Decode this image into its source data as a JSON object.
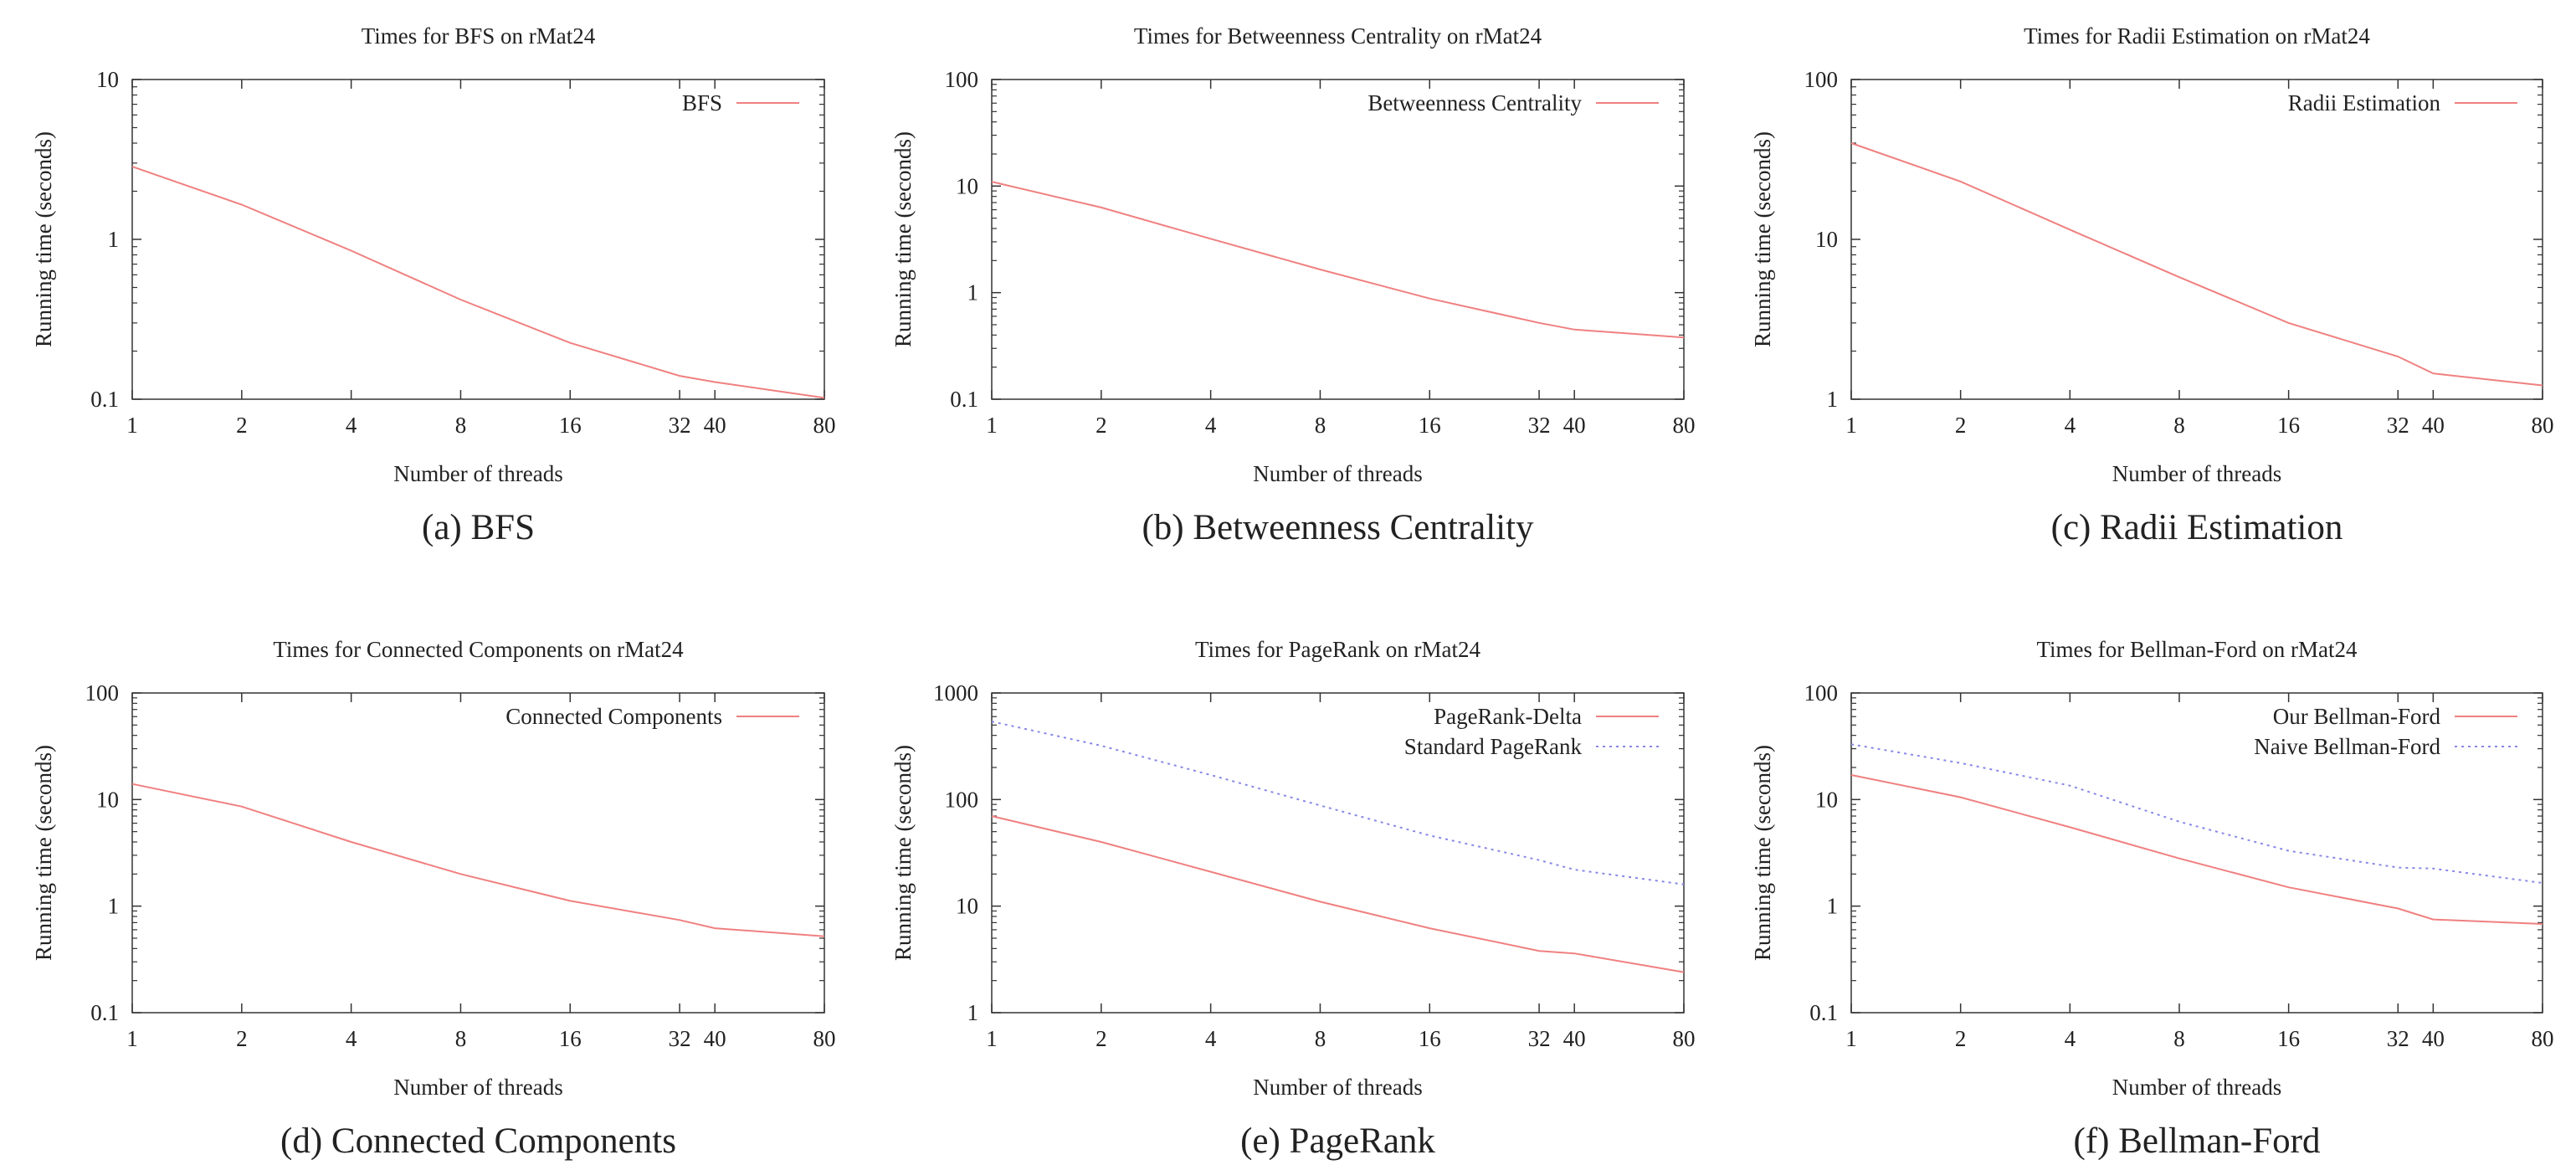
{
  "chart_data": [
    {
      "type": "line",
      "title": "Times for BFS on rMat24",
      "caption": "(a)  BFS",
      "xlabel": "Number of threads",
      "ylabel": "Running time (seconds)",
      "xscale": "log",
      "yscale": "log",
      "xlim": [
        1,
        80
      ],
      "ylim": [
        0.1,
        10
      ],
      "xticks": [
        1,
        2,
        4,
        8,
        16,
        32,
        40,
        80
      ],
      "yticks": [
        0.1,
        1,
        10
      ],
      "ytick_labels": [
        "0.1",
        "1",
        "10"
      ],
      "grid": false,
      "legend_position": "top-right",
      "series": [
        {
          "name": "BFS",
          "color": "#f08080",
          "style": "solid",
          "x": [
            1,
            2,
            4,
            8,
            16,
            32,
            40,
            80
          ],
          "y": [
            2.85,
            1.65,
            0.85,
            0.42,
            0.225,
            0.14,
            0.128,
            0.102
          ]
        }
      ]
    },
    {
      "type": "line",
      "title": "Times for Betweenness Centrality on rMat24",
      "caption": "(b)  Betweenness Centrality",
      "xlabel": "Number of threads",
      "ylabel": "Running time (seconds)",
      "xscale": "log",
      "yscale": "log",
      "xlim": [
        1,
        80
      ],
      "ylim": [
        0.1,
        100
      ],
      "xticks": [
        1,
        2,
        4,
        8,
        16,
        32,
        40,
        80
      ],
      "yticks": [
        0.1,
        1,
        10,
        100
      ],
      "ytick_labels": [
        "0.1",
        "1",
        "10",
        "100"
      ],
      "grid": false,
      "legend_position": "top-right",
      "series": [
        {
          "name": "Betweenness Centrality",
          "color": "#f08080",
          "style": "solid",
          "x": [
            1,
            2,
            4,
            8,
            16,
            32,
            40,
            80
          ],
          "y": [
            11,
            6.3,
            3.2,
            1.65,
            0.88,
            0.52,
            0.45,
            0.38
          ]
        }
      ]
    },
    {
      "type": "line",
      "title": "Times for Radii Estimation on rMat24",
      "caption": "(c)  Radii Estimation",
      "xlabel": "Number of threads",
      "ylabel": "Running time (seconds)",
      "xscale": "log",
      "yscale": "log",
      "xlim": [
        1,
        80
      ],
      "ylim": [
        1,
        100
      ],
      "xticks": [
        1,
        2,
        4,
        8,
        16,
        32,
        40,
        80
      ],
      "yticks": [
        1,
        10,
        100
      ],
      "ytick_labels": [
        "1",
        "10",
        "100"
      ],
      "grid": false,
      "legend_position": "top-right",
      "series": [
        {
          "name": "Radii Estimation",
          "color": "#f08080",
          "style": "solid",
          "x": [
            1,
            2,
            4,
            8,
            16,
            32,
            40,
            80
          ],
          "y": [
            40,
            23,
            11.5,
            5.8,
            3.0,
            1.85,
            1.45,
            1.22
          ]
        }
      ]
    },
    {
      "type": "line",
      "title": "Times for Connected Components on rMat24",
      "caption": "(d)  Connected Components",
      "xlabel": "Number of threads",
      "ylabel": "Running time (seconds)",
      "xscale": "log",
      "yscale": "log",
      "xlim": [
        1,
        80
      ],
      "ylim": [
        0.1,
        100
      ],
      "xticks": [
        1,
        2,
        4,
        8,
        16,
        32,
        40,
        80
      ],
      "yticks": [
        0.1,
        1,
        10,
        100
      ],
      "ytick_labels": [
        "0.1",
        "1",
        "10",
        "100"
      ],
      "grid": false,
      "legend_position": "top-right",
      "series": [
        {
          "name": "Connected Components",
          "color": "#f08080",
          "style": "solid",
          "x": [
            1,
            2,
            4,
            8,
            16,
            32,
            40,
            80
          ],
          "y": [
            14,
            8.6,
            4.0,
            2.0,
            1.12,
            0.74,
            0.62,
            0.52
          ]
        }
      ]
    },
    {
      "type": "line",
      "title": "Times for PageRank on rMat24",
      "caption": "(e)  PageRank",
      "xlabel": "Number of threads",
      "ylabel": "Running time (seconds)",
      "xscale": "log",
      "yscale": "log",
      "xlim": [
        1,
        80
      ],
      "ylim": [
        1,
        1000
      ],
      "xticks": [
        1,
        2,
        4,
        8,
        16,
        32,
        40,
        80
      ],
      "yticks": [
        1,
        10,
        100,
        1000
      ],
      "ytick_labels": [
        "1",
        "10",
        "100",
        "1000"
      ],
      "grid": false,
      "legend_position": "top-right",
      "series": [
        {
          "name": "PageRank-Delta",
          "color": "#f08080",
          "style": "solid",
          "x": [
            1,
            2,
            4,
            8,
            16,
            32,
            40,
            80
          ],
          "y": [
            70,
            40,
            21,
            11,
            6.2,
            3.8,
            3.6,
            2.4
          ]
        },
        {
          "name": "Standard PageRank",
          "color": "#8888e8",
          "style": "dotted",
          "x": [
            1,
            2,
            4,
            8,
            16,
            32,
            40,
            80
          ],
          "y": [
            540,
            320,
            170,
            88,
            46,
            27,
            22,
            16
          ]
        }
      ]
    },
    {
      "type": "line",
      "title": "Times for Bellman-Ford on rMat24",
      "caption": "(f)  Bellman-Ford",
      "xlabel": "Number of threads",
      "ylabel": "Running time (seconds)",
      "xscale": "log",
      "yscale": "log",
      "xlim": [
        1,
        80
      ],
      "ylim": [
        0.1,
        100
      ],
      "xticks": [
        1,
        2,
        4,
        8,
        16,
        32,
        40,
        80
      ],
      "yticks": [
        0.1,
        1,
        10,
        100
      ],
      "ytick_labels": [
        "0.1",
        "1",
        "10",
        "100"
      ],
      "grid": false,
      "legend_position": "top-right",
      "series": [
        {
          "name": "Our Bellman-Ford",
          "color": "#f08080",
          "style": "solid",
          "x": [
            1,
            2,
            4,
            8,
            16,
            32,
            40,
            80
          ],
          "y": [
            17,
            10.5,
            5.5,
            2.8,
            1.5,
            0.95,
            0.75,
            0.68
          ]
        },
        {
          "name": "Naive Bellman-Ford",
          "color": "#8888e8",
          "style": "dotted",
          "x": [
            1,
            2,
            4,
            8,
            16,
            32,
            40,
            80
          ],
          "y": [
            33,
            22,
            13.5,
            6.2,
            3.3,
            2.3,
            2.25,
            1.65
          ]
        }
      ]
    }
  ]
}
